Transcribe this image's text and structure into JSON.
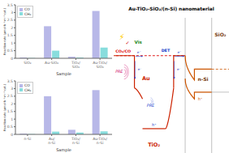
{
  "chart_data": [
    {
      "type": "bar",
      "categories": [
        "SiO₂",
        "Au-SiO₂",
        "TiO₂/SiO₂",
        "Au-TiO₂/SiO₂"
      ],
      "series": [
        {
          "name": "CO",
          "color": "#b8b8e8",
          "values": [
            0.05,
            2.1,
            0.1,
            3.1
          ]
        },
        {
          "name": "CH₄",
          "color": "#88dddd",
          "values": [
            0.02,
            0.5,
            0.05,
            0.7
          ]
        }
      ],
      "xlabel": "Sample",
      "ylabel": "Reaction rate (μmol·h⁻¹·m⁻²·cat.)",
      "ylim": [
        0,
        3.5
      ],
      "yticks": [
        0,
        0.5,
        1,
        1.5,
        2,
        2.5,
        3,
        3.5
      ],
      "legend": "upper left",
      "grid": false
    },
    {
      "type": "bar",
      "categories": [
        "n-Si",
        "Au/n-Si",
        "TiO₂/n-Si",
        "Au-TiO₂/n-Si"
      ],
      "series": [
        {
          "name": "CO",
          "color": "#b8b8e8",
          "values": [
            0.05,
            2.5,
            0.3,
            2.9
          ]
        },
        {
          "name": "CH₄",
          "color": "#88dddd",
          "values": [
            0.02,
            0.18,
            0.12,
            0.2
          ]
        }
      ],
      "xlabel": "Sample",
      "ylabel": "Reaction rate (μmol·h⁻¹·m⁻²·cat.)",
      "ylim": [
        0,
        3.5
      ],
      "yticks": [
        0,
        0.5,
        1,
        1.5,
        2,
        2.5,
        3,
        3.5
      ],
      "legend": "upper left",
      "grid": false
    },
    {
      "type": "diagram",
      "title": "Au-TiO₂-SiO₂/(n-Si) nanomaterial",
      "color": "#cc2200",
      "annotations": [
        {
          "text": "SiO₂",
          "color": "#7a3b10"
        },
        {
          "text": "n-Si",
          "color": "#7a3b10"
        },
        {
          "text": "Au",
          "color": "#cc2200"
        },
        {
          "text": "TiO₂",
          "color": "#cc2200"
        },
        {
          "text": "CO₂/CO",
          "color": "#dd0000"
        },
        {
          "text": "h⁺",
          "color": "#cc5500"
        },
        {
          "text": "h⁺",
          "color": "#2244cc"
        },
        {
          "text": "PRE",
          "color": "#cc0066"
        },
        {
          "text": "PRE",
          "color": "#2244cc"
        },
        {
          "text": "DET",
          "color": "#2244cc"
        },
        {
          "text": "e⁻",
          "color": "#3344cc"
        },
        {
          "text": "e⁻",
          "color": "#3344cc"
        },
        {
          "text": "e⁻",
          "color": "#3344cc"
        },
        {
          "text": "e⁻",
          "color": "#3344cc"
        },
        {
          "text": "⚡",
          "color": "#ffcc00"
        },
        {
          "text": "✓",
          "color": "#cc0000"
        },
        {
          "text": "Vis",
          "color": "#228822"
        }
      ]
    }
  ]
}
